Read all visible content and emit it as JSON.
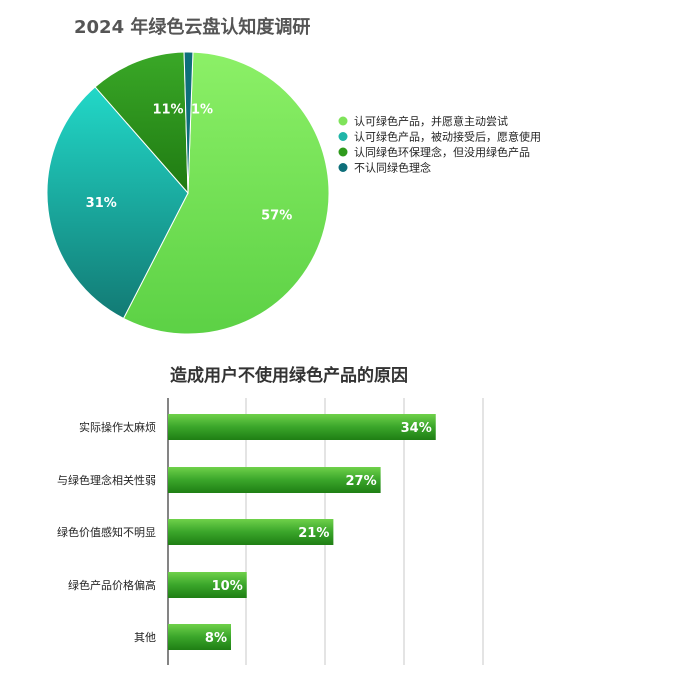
{
  "chart_data": [
    {
      "type": "pie",
      "title": "2024 年绿色云盘认知度调研",
      "slices": [
        {
          "label": "认可绿色产品，并愿意主动尝试",
          "value": 57,
          "display": "57%",
          "color": "#7fe35a"
        },
        {
          "label": "认可绿色产品，被动接受后，愿意使用",
          "value": 31,
          "display": "31%",
          "color": "#1fb5a8"
        },
        {
          "label": "认同绿色环保理念，但没用绿色产品",
          "value": 11,
          "display": "11%",
          "color": "#2f9a1c"
        },
        {
          "label": "不认同绿色理念",
          "value": 1,
          "display": "1%",
          "color": "#0e6f7a"
        }
      ],
      "legend_position": "right"
    },
    {
      "type": "bar",
      "orientation": "horizontal",
      "title": "造成用户不使用绿色产品的原因",
      "categories": [
        "实际操作太麻烦",
        "与绿色理念相关性弱",
        "绿色价值感知不明显",
        "绿色产品价格偏高",
        "其他"
      ],
      "values": [
        34,
        27,
        21,
        10,
        8
      ],
      "value_labels": [
        "34%",
        "27%",
        "21%",
        "10%",
        "8%"
      ],
      "xlim": [
        0,
        40
      ],
      "grid": true,
      "bar_color": "#3aa52a"
    }
  ]
}
